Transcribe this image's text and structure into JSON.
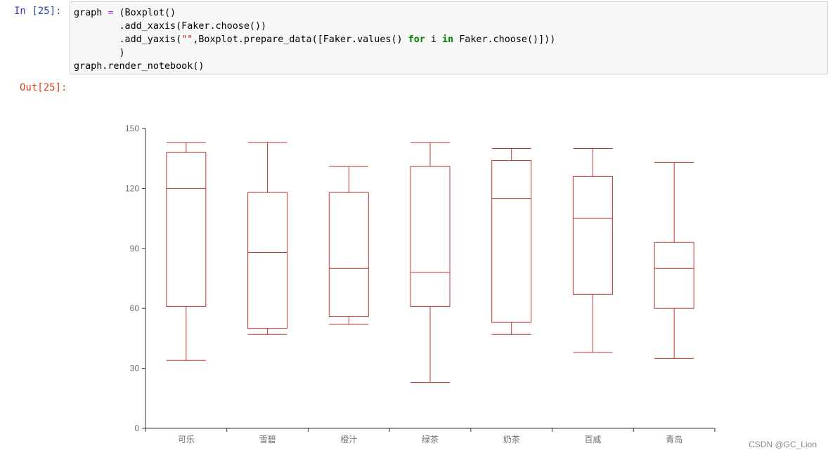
{
  "notebook": {
    "in_prompt": "In  [25]:",
    "out_prompt": "Out[25]:",
    "code": {
      "l1_a": "graph ",
      "l1_eq": "=",
      "l1_b": " (Boxplot()",
      "l2": "        .add_xaxis(Faker.choose())",
      "l3_a": "        .add_yaxis(",
      "l3_str": "\"\"",
      "l3_b": ",Boxplot.prepare_data([Faker.values() ",
      "l3_for": "for",
      "l3_c": " i ",
      "l3_in": "in",
      "l3_d": " Faker.choose()]))",
      "l4": "        )",
      "l5": "graph.render_notebook()"
    }
  },
  "watermark": "CSDN @GC_Lion",
  "colors": {
    "box_stroke": "#c23531",
    "axis": "#333333",
    "tick_text": "#6e7079"
  },
  "chart_data": {
    "type": "boxplot",
    "categories": [
      "可乐",
      "雪碧",
      "橙汁",
      "绿茶",
      "奶茶",
      "百威",
      "青岛"
    ],
    "ylim": [
      0,
      150
    ],
    "yticks": [
      0,
      30,
      60,
      90,
      120,
      150
    ],
    "series": [
      {
        "boxes": [
          {
            "min": 34,
            "q1": 61,
            "median": 120,
            "q3": 138,
            "max": 143
          },
          {
            "min": 47,
            "q1": 50,
            "median": 88,
            "q3": 118,
            "max": 143
          },
          {
            "min": 52,
            "q1": 56,
            "median": 80,
            "q3": 118,
            "max": 131
          },
          {
            "min": 23,
            "q1": 61,
            "median": 78,
            "q3": 131,
            "max": 143
          },
          {
            "min": 47,
            "q1": 53,
            "median": 115,
            "q3": 134,
            "max": 140
          },
          {
            "min": 38,
            "q1": 67,
            "median": 105,
            "q3": 126,
            "max": 140
          },
          {
            "min": 35,
            "q1": 60,
            "median": 80,
            "q3": 93,
            "max": 133
          }
        ]
      }
    ],
    "grid": false,
    "legend": "none"
  }
}
